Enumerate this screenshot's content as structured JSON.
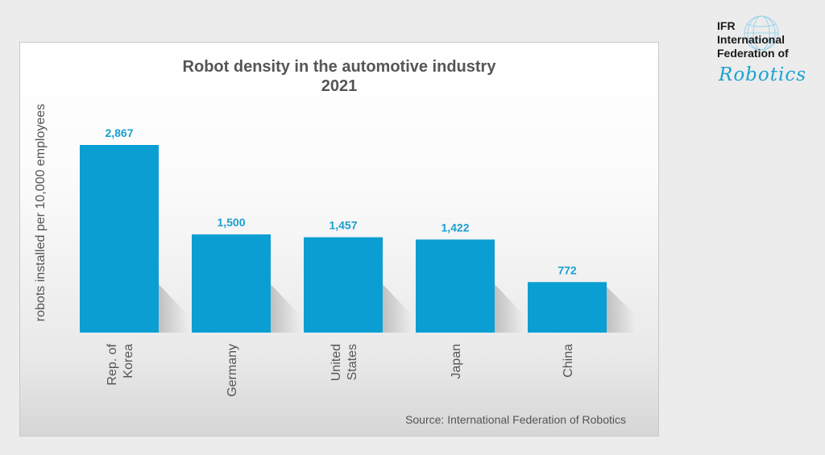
{
  "logo": {
    "lines": [
      "IFR",
      "International",
      "Federation of"
    ],
    "script_word": "Robotics",
    "accent_color": "#1aa3d4",
    "icon": "globe-icon"
  },
  "source": "Source: International Federation of Robotics",
  "chart_data": {
    "type": "bar",
    "title": "Robot density in the automotive industry",
    "subtitle": "2021",
    "ylabel": "robots installed per 10,000 employees",
    "xlabel": "",
    "categories": [
      [
        "Rep. of",
        "Korea"
      ],
      [
        "Germany"
      ],
      [
        "United",
        "States"
      ],
      [
        "Japan"
      ],
      [
        "China"
      ]
    ],
    "values": [
      2867,
      1500,
      1457,
      1422,
      772
    ],
    "data_labels": [
      "2,867",
      "1,500",
      "1,457",
      "1,422",
      "772"
    ],
    "ylim": [
      0,
      2867
    ],
    "grid": false,
    "bar_color": "#0b9ed3",
    "label_color": "#1a9fd0"
  }
}
